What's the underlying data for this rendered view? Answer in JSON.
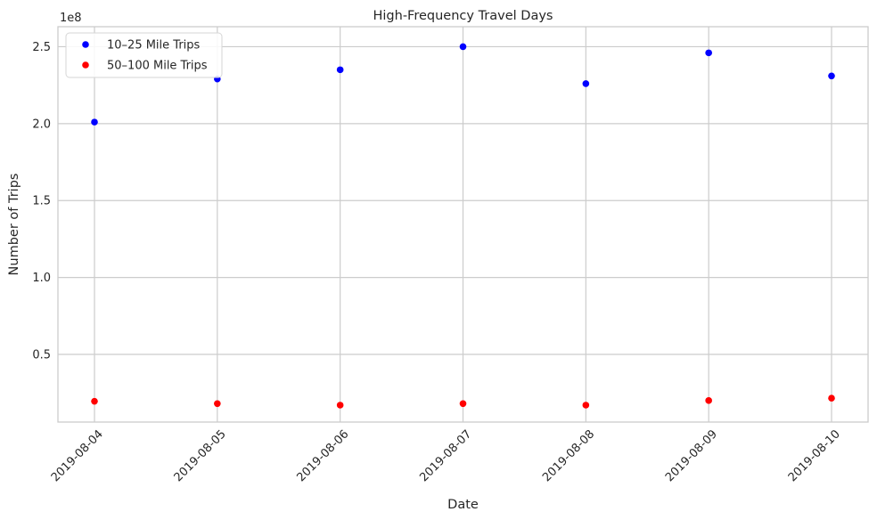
{
  "chart_data": {
    "type": "scatter",
    "title": "High-Frequency Travel Days",
    "xlabel": "Date",
    "ylabel": "Number of Trips",
    "y_offset_label": "1e8",
    "x": [
      "2019-08-04",
      "2019-08-05",
      "2019-08-06",
      "2019-08-07",
      "2019-08-08",
      "2019-08-09",
      "2019-08-10"
    ],
    "yticks": [
      "0.5",
      "1.0",
      "1.5",
      "2.0",
      "2.5"
    ],
    "ylim": [
      0.06,
      2.63
    ],
    "y_scale": 100000000,
    "grid": true,
    "legend_position": "top-left",
    "series": [
      {
        "name": "10–25 Mile Trips",
        "color": "#0000ff",
        "values": [
          201000000,
          229000000,
          235000000,
          250000000,
          226000000,
          246000000,
          231000000
        ]
      },
      {
        "name": "50–100 Mile Trips",
        "color": "#ff0000",
        "values": [
          19500000,
          18000000,
          17000000,
          18000000,
          17000000,
          20000000,
          21500000
        ]
      }
    ]
  }
}
